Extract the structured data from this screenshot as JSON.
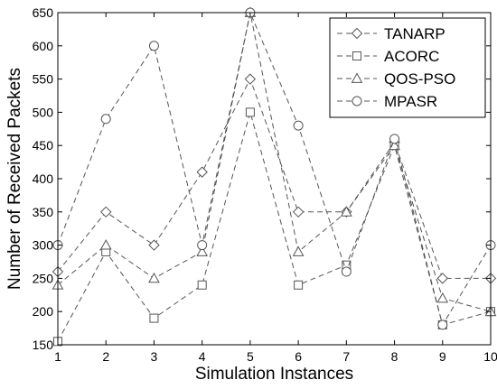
{
  "chart_data": {
    "type": "line",
    "xlabel": "Simulation Instances",
    "ylabel": "Number of Received Packets",
    "x": [
      1,
      2,
      3,
      4,
      5,
      6,
      7,
      8,
      9,
      10
    ],
    "xlim": [
      1,
      10
    ],
    "ylim": [
      150,
      650
    ],
    "yticks": [
      150,
      200,
      250,
      300,
      350,
      400,
      450,
      500,
      550,
      600,
      650
    ],
    "grid": false,
    "legend_position": "top-right",
    "series": [
      {
        "name": "TANARP",
        "marker": "diamond",
        "values": [
          260,
          350,
          300,
          410,
          550,
          350,
          350,
          455,
          250,
          250
        ]
      },
      {
        "name": "ACORC",
        "marker": "square",
        "values": [
          155,
          290,
          190,
          240,
          500,
          240,
          270,
          450,
          180,
          200
        ]
      },
      {
        "name": "QOS-PSO",
        "marker": "triangle",
        "values": [
          240,
          300,
          250,
          290,
          650,
          290,
          350,
          450,
          220,
          200
        ]
      },
      {
        "name": "MPASR",
        "marker": "circle",
        "values": [
          300,
          490,
          600,
          300,
          650,
          480,
          260,
          460,
          180,
          300
        ]
      }
    ],
    "line_color": "#555555"
  }
}
